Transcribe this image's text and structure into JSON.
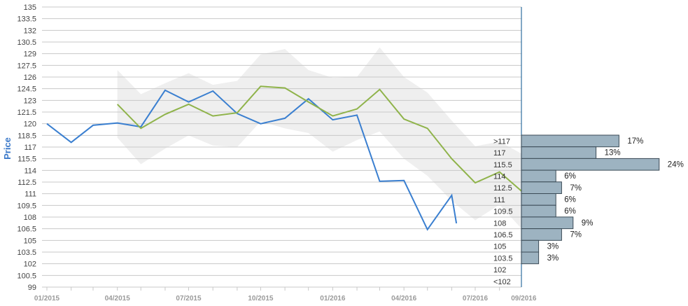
{
  "chart_data": {
    "type": "line",
    "ylabel": "Price",
    "xlabel": "",
    "ylim": [
      99,
      135
    ],
    "y_ticks": [
      "135",
      "133.5",
      "132",
      "130.5",
      "129",
      "127.5",
      "126",
      "124.5",
      "123",
      "121.5",
      "120",
      "118.5",
      "117",
      "115.5",
      "114",
      "112.5",
      "111",
      "109.5",
      "108",
      "106.5",
      "105",
      "103.5",
      "102",
      "100.5",
      "99"
    ],
    "x_ticks": [
      "01/2015",
      "04/2015",
      "07/2015",
      "10/2015",
      "01/2016",
      "04/2016",
      "07/2016",
      "09/2016"
    ],
    "grid": true,
    "series": [
      {
        "key": "actual",
        "color": "#3a7fd0",
        "points": [
          [
            "2015-01",
            120.0
          ],
          [
            "2015-02",
            117.6
          ],
          [
            "2015-03",
            119.8
          ],
          [
            "2015-04",
            120.1
          ],
          [
            "2015-05",
            119.6
          ],
          [
            "2015-06",
            124.3
          ],
          [
            "2015-07",
            122.8
          ],
          [
            "2015-08",
            124.2
          ],
          [
            "2015-09",
            121.3
          ],
          [
            "2015-10",
            120.0
          ],
          [
            "2015-11",
            120.7
          ],
          [
            "2015-12",
            123.2
          ],
          [
            "2016-01",
            120.5
          ],
          [
            "2016-02",
            121.1
          ],
          [
            "2016-03",
            112.6
          ],
          [
            "2016-04",
            112.7
          ],
          [
            "2016-05",
            106.4
          ],
          [
            "2016-06",
            110.8
          ],
          [
            "2016-06-07",
            107.2
          ]
        ]
      },
      {
        "key": "forecast",
        "color": "#8fb34a",
        "points": [
          [
            "2015-04",
            122.5
          ],
          [
            "2015-05",
            119.4
          ],
          [
            "2015-06",
            121.2
          ],
          [
            "2015-07",
            122.5
          ],
          [
            "2015-08",
            121.0
          ],
          [
            "2015-09",
            121.4
          ],
          [
            "2015-10",
            124.8
          ],
          [
            "2015-11",
            124.6
          ],
          [
            "2015-12",
            122.8
          ],
          [
            "2016-01",
            121.0
          ],
          [
            "2016-02",
            121.9
          ],
          [
            "2016-03",
            124.4
          ],
          [
            "2016-04",
            120.6
          ],
          [
            "2016-05",
            119.4
          ],
          [
            "2016-06",
            115.5
          ],
          [
            "2016-07",
            112.4
          ],
          [
            "2016-08",
            113.8
          ],
          [
            "2016-09",
            111.1
          ],
          [
            "2016-09-03",
            112.6
          ]
        ]
      }
    ],
    "band": {
      "color": "#efefef",
      "upper": [
        [
          "2015-04",
          126.9
        ],
        [
          "2015-05",
          123.8
        ],
        [
          "2015-06",
          125.2
        ],
        [
          "2015-07",
          126.5
        ],
        [
          "2015-08",
          125.0
        ],
        [
          "2015-09",
          125.5
        ],
        [
          "2015-10",
          128.9
        ],
        [
          "2015-11",
          129.6
        ],
        [
          "2015-12",
          126.9
        ],
        [
          "2016-01",
          125.9
        ],
        [
          "2016-02",
          126.0
        ],
        [
          "2016-03",
          129.8
        ],
        [
          "2016-04",
          126.0
        ],
        [
          "2016-05",
          124.0
        ],
        [
          "2016-06",
          120.4
        ],
        [
          "2016-07",
          117.1
        ],
        [
          "2016-08",
          117.7
        ],
        [
          "2016-09",
          116.0
        ]
      ],
      "lower": [
        [
          "2015-04",
          118.2
        ],
        [
          "2015-05",
          114.8
        ],
        [
          "2015-06",
          116.8
        ],
        [
          "2015-07",
          118.5
        ],
        [
          "2015-08",
          117.2
        ],
        [
          "2015-09",
          117.0
        ],
        [
          "2015-10",
          120.3
        ],
        [
          "2015-11",
          119.4
        ],
        [
          "2015-12",
          118.8
        ],
        [
          "2016-01",
          116.4
        ],
        [
          "2016-02",
          117.9
        ],
        [
          "2016-03",
          119.0
        ],
        [
          "2016-04",
          115.5
        ],
        [
          "2016-05",
          113.3
        ],
        [
          "2016-06",
          110.1
        ],
        [
          "2016-07",
          107.6
        ],
        [
          "2016-08",
          109.6
        ],
        [
          "2016-09",
          106.2
        ]
      ]
    },
    "distribution": [
      {
        "label": ">117",
        "pct": "17%",
        "value": 17
      },
      {
        "label": "117",
        "pct": "13%",
        "value": 13
      },
      {
        "label": "115.5",
        "pct": "24%",
        "value": 24
      },
      {
        "label": "114",
        "pct": "6%",
        "value": 6
      },
      {
        "label": "112.5",
        "pct": "7%",
        "value": 7
      },
      {
        "label": "111",
        "pct": "6%",
        "value": 6
      },
      {
        "label": "109.5",
        "pct": "6%",
        "value": 6
      },
      {
        "label": "108",
        "pct": "9%",
        "value": 9
      },
      {
        "label": "106.5",
        "pct": "7%",
        "value": 7
      },
      {
        "label": "105",
        "pct": "3%",
        "value": 3
      },
      {
        "label": "103.5",
        "pct": "3%",
        "value": 3
      },
      {
        "label": "102",
        "pct": "",
        "value": 0
      },
      {
        "label": "<102",
        "pct": "",
        "value": 0
      }
    ],
    "distribution_color": "#9db3c1"
  }
}
